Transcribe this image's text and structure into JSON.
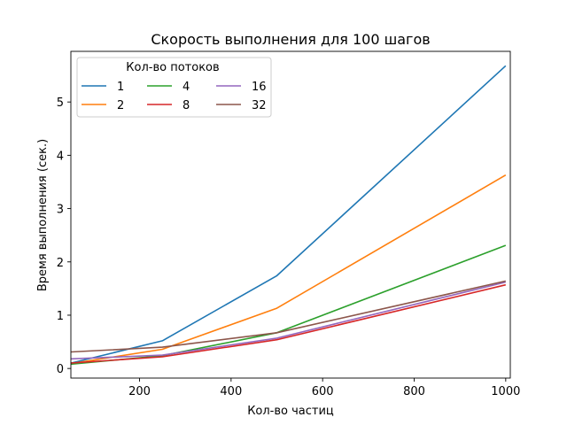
{
  "chart_data": {
    "type": "line",
    "title": "Скорость выполнения для 100 шагов",
    "xlabel": "Кол-во частиц",
    "ylabel": "Время выполнения (сек.)",
    "xlim": [
      50,
      1010
    ],
    "ylim": [
      -0.18,
      5.95
    ],
    "xticks": [
      200,
      400,
      600,
      800,
      1000
    ],
    "yticks": [
      0,
      1,
      2,
      3,
      4,
      5
    ],
    "grid": false,
    "legend": {
      "title": "Кол-во потоков",
      "placement": "top-left",
      "columns": 3
    },
    "x": [
      50,
      250,
      500,
      1000
    ],
    "series": [
      {
        "name": "1",
        "color": "#1f77b4",
        "values": [
          0.1,
          0.52,
          1.74,
          5.68
        ]
      },
      {
        "name": "2",
        "color": "#ff7f0e",
        "values": [
          0.09,
          0.36,
          1.13,
          3.63
        ]
      },
      {
        "name": "4",
        "color": "#2ca02c",
        "values": [
          0.08,
          0.24,
          0.67,
          2.31
        ]
      },
      {
        "name": "8",
        "color": "#d62728",
        "values": [
          0.1,
          0.22,
          0.54,
          1.57
        ]
      },
      {
        "name": "16",
        "color": "#9467bd",
        "values": [
          0.18,
          0.25,
          0.57,
          1.62
        ]
      },
      {
        "name": "32",
        "color": "#8c564b",
        "values": [
          0.31,
          0.4,
          0.67,
          1.64
        ]
      }
    ]
  }
}
